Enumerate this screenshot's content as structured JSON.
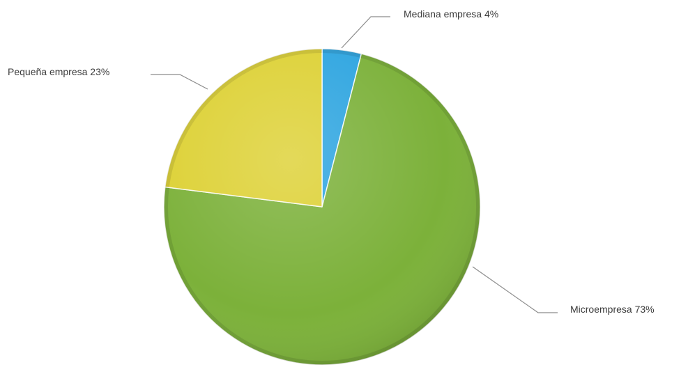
{
  "chart_data": {
    "type": "pie",
    "title": "",
    "series": [
      {
        "name": "Mediana empresa",
        "value": 4,
        "color": "#2EA5E0",
        "label": "Mediana empresa 4%"
      },
      {
        "name": "Microempresa",
        "value": 73,
        "color": "#7CB13A",
        "label": "Microempresa 73%"
      },
      {
        "name": "Pequeña empresa",
        "value": 23,
        "color": "#DDD135",
        "label": "Pequeña empresa 23%"
      }
    ],
    "start_angle_deg": 0,
    "direction": "clockwise",
    "labels_show": "category-and-percent",
    "legend": "none"
  }
}
